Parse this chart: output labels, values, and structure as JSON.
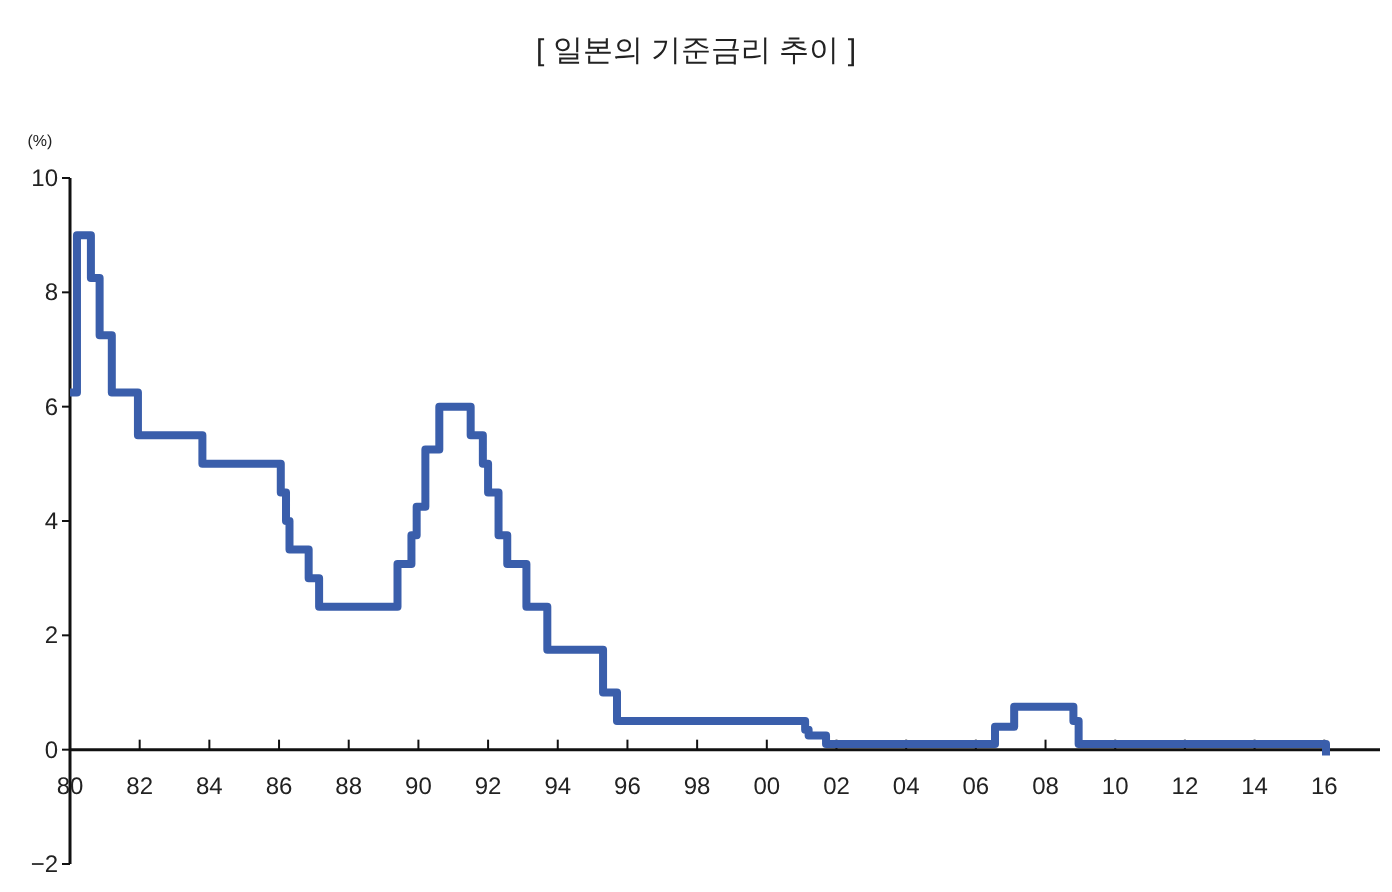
{
  "chart_data": {
    "type": "step",
    "title": "[ 일본의 기준금리 추이 ]",
    "ylabel": "(%)",
    "x": [
      1980.0,
      1980.2,
      1980.6,
      1980.85,
      1981.2,
      1981.95,
      1983.8,
      1986.05,
      1986.2,
      1986.3,
      1986.85,
      1987.15,
      1989.4,
      1989.8,
      1989.95,
      1990.2,
      1990.6,
      1991.5,
      1991.85,
      1992.0,
      1992.3,
      1992.55,
      1993.1,
      1993.7,
      1995.3,
      1995.7,
      2001.1,
      2001.2,
      2001.7,
      2006.55,
      2007.1,
      2008.8,
      2008.95,
      2016.0,
      2016.05
    ],
    "series": [
      {
        "color": "#3a5eab",
        "values": [
          6.25,
          9.0,
          8.25,
          7.25,
          6.25,
          5.5,
          5.0,
          4.5,
          4.0,
          3.5,
          3.0,
          2.5,
          3.25,
          3.75,
          4.25,
          5.25,
          6.0,
          5.5,
          5.0,
          4.5,
          3.75,
          3.25,
          2.5,
          1.75,
          1.0,
          0.5,
          0.35,
          0.25,
          0.1,
          0.4,
          0.75,
          0.5,
          0.1,
          0.1,
          -0.1
        ]
      }
    ],
    "xlim": [
      1980,
      2017.6
    ],
    "ylim": [
      -2,
      10
    ],
    "xticks": [
      {
        "value": 1980,
        "label": "80"
      },
      {
        "value": 1982,
        "label": "82"
      },
      {
        "value": 1984,
        "label": "84"
      },
      {
        "value": 1986,
        "label": "86"
      },
      {
        "value": 1988,
        "label": "88"
      },
      {
        "value": 1990,
        "label": "90"
      },
      {
        "value": 1992,
        "label": "92"
      },
      {
        "value": 1994,
        "label": "94"
      },
      {
        "value": 1996,
        "label": "96"
      },
      {
        "value": 1998,
        "label": "98"
      },
      {
        "value": 2000,
        "label": "00"
      },
      {
        "value": 2002,
        "label": "02"
      },
      {
        "value": 2004,
        "label": "04"
      },
      {
        "value": 2006,
        "label": "06"
      },
      {
        "value": 2008,
        "label": "08"
      },
      {
        "value": 2010,
        "label": "10"
      },
      {
        "value": 2012,
        "label": "12"
      },
      {
        "value": 2014,
        "label": "14"
      },
      {
        "value": 2016,
        "label": "16"
      }
    ],
    "yticks": [
      {
        "value": -2,
        "label": "−2"
      },
      0,
      2,
      4,
      6,
      8,
      10
    ],
    "line_style": "solid"
  }
}
